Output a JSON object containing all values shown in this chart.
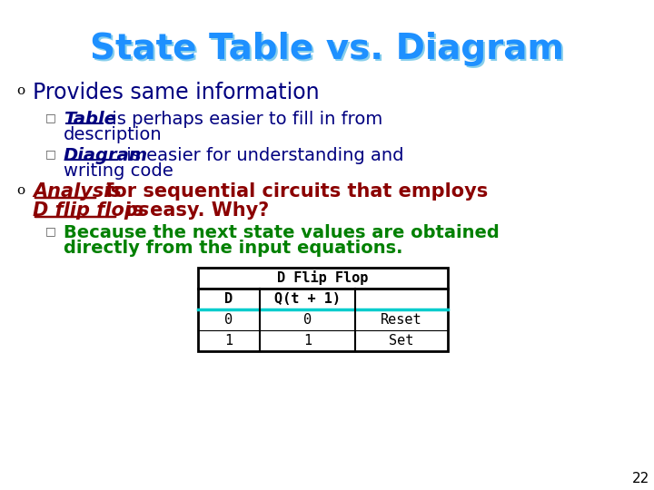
{
  "title": "State Table vs. Diagram",
  "title_color": "#1E90FF",
  "title_shadow_color": "#87CEEB",
  "bg_color": "#FFFFFF",
  "slide_number": "22",
  "bullet1": "Provides same information",
  "bullet1_color": "#000080",
  "sub_bullet1_bold": "Table",
  "sub_bullet2_bold": "Diagram",
  "sub_color": "#000080",
  "bullet2_part1_italic_underline": "Analysis",
  "bullet2_part2_italic_underline": "D flip flops",
  "bullet2_color": "#8B0000",
  "sub_bullet3_color": "#008000",
  "table_title": "D Flip Flop",
  "table_col1_header": "D",
  "table_col2_header": "Q(t + 1)",
  "table_data": [
    [
      "0",
      "0",
      "Reset"
    ],
    [
      "1",
      "1",
      "Set"
    ]
  ],
  "table_header_line_color": "#00CCCC",
  "table_border_color": "#000000"
}
